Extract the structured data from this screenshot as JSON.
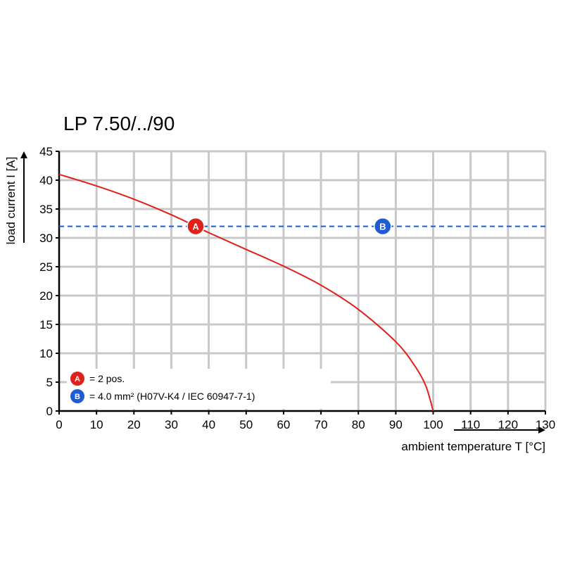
{
  "chart_data": {
    "type": "line",
    "title": "LP 7.50/../90",
    "xlabel": "ambient temperature T [°C]",
    "ylabel": "load current I [A]",
    "xlim": [
      0,
      130
    ],
    "ylim": [
      0,
      45
    ],
    "x_ticks": [
      "0",
      "10",
      "20",
      "30",
      "40",
      "50",
      "60",
      "70",
      "80",
      "90",
      "100",
      "110",
      "120",
      "130"
    ],
    "y_ticks": [
      "0",
      "5",
      "10",
      "15",
      "20",
      "25",
      "30",
      "35",
      "40",
      "45"
    ],
    "grid": true,
    "series": [
      {
        "color": "#e0201b",
        "style": "solid",
        "x": [
          0,
          10,
          20,
          30,
          36.5,
          40,
          50,
          60,
          70,
          80,
          90,
          95,
          98,
          100
        ],
        "y": [
          41.0,
          39.0,
          36.7,
          34.0,
          32.0,
          30.9,
          28.0,
          25.1,
          21.8,
          17.6,
          12.0,
          7.9,
          4.4,
          0
        ]
      },
      {
        "color": "#1e5bd6",
        "style": "dashed",
        "x": [
          0,
          130
        ],
        "y": [
          32,
          32
        ]
      }
    ],
    "markers": [
      {
        "letter": "A",
        "x": 36.5,
        "y": 32,
        "color": "#e0201b"
      },
      {
        "letter": "B",
        "x": 86.5,
        "y": 32,
        "color": "#1e5bd6"
      }
    ],
    "legend": {
      "placement": "bottom-left",
      "items": [
        {
          "letter": "A",
          "color": "#e0201b",
          "text": "= 2 pos."
        },
        {
          "letter": "B",
          "color": "#1e5bd6",
          "text": "= 4.0 mm² (H07V-K4 / IEC 60947-7-1)"
        }
      ]
    }
  }
}
